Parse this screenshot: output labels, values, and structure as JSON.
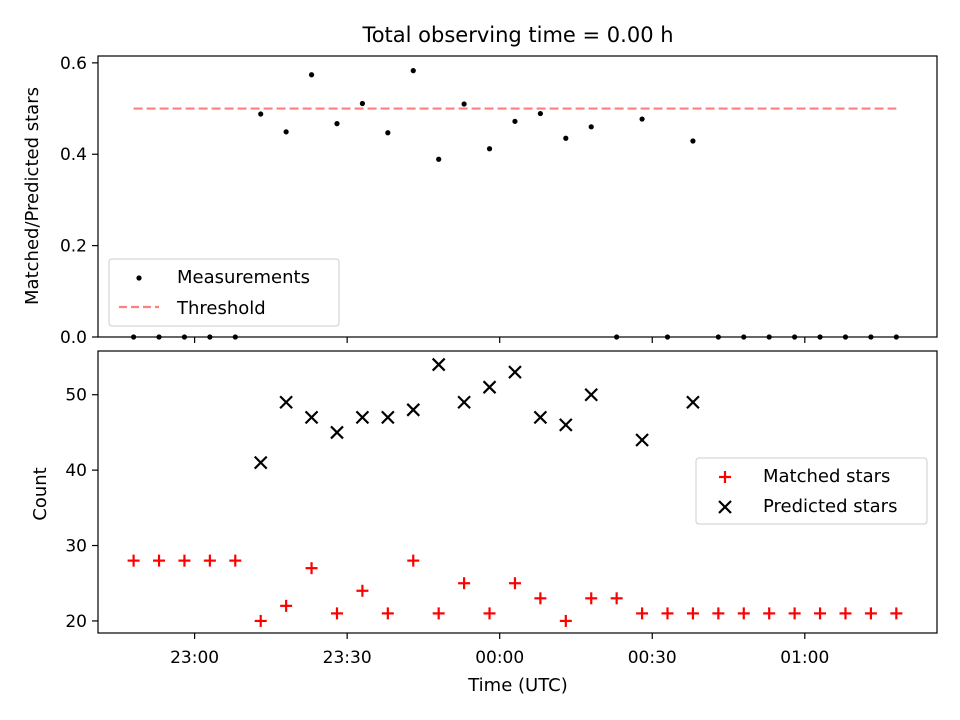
{
  "figure": {
    "title": "Total observing time = 0.00 h"
  },
  "chart_data": [
    {
      "type": "scatter",
      "ylabel": "Matched/Predicted stars",
      "ylim": [
        0,
        0.615
      ],
      "yticks": [
        "0.0",
        "0.2",
        "0.4",
        "0.6"
      ],
      "ytick_values": [
        0.0,
        0.2,
        0.4,
        0.6
      ],
      "legend_position": "lower-left",
      "series": [
        {
          "name": "Measurements",
          "marker": "dot",
          "color": "#000000",
          "x": [
            "22:48",
            "22:53",
            "22:58",
            "23:03",
            "23:08",
            "23:13",
            "23:18",
            "23:23",
            "23:28",
            "23:33",
            "23:38",
            "23:43",
            "23:48",
            "23:53",
            "23:58",
            "00:03",
            "00:08",
            "00:13",
            "00:18",
            "00:23",
            "00:28",
            "00:33",
            "00:38",
            "00:43",
            "00:48",
            "00:53",
            "00:58",
            "01:03",
            "01:08",
            "01:13",
            "01:18"
          ],
          "y": [
            0,
            0,
            0,
            0,
            0,
            0.488,
            0.449,
            0.574,
            0.467,
            0.511,
            0.447,
            0.583,
            0.389,
            0.51,
            0.412,
            0.472,
            0.489,
            0.435,
            0.46,
            0,
            0.477,
            0,
            0.429,
            0,
            0,
            0,
            0,
            0,
            0,
            0,
            0
          ]
        },
        {
          "name": "Threshold",
          "type": "dashed-line",
          "color": "#ff7f7f",
          "x": [
            "22:48",
            "01:18"
          ],
          "y": [
            0.5,
            0.5
          ]
        }
      ]
    },
    {
      "type": "scatter",
      "xlabel": "Time (UTC)",
      "ylabel": "Count",
      "ylim": [
        18.4,
        55.8
      ],
      "yticks": [
        "20",
        "30",
        "40",
        "50"
      ],
      "ytick_values": [
        20,
        30,
        40,
        50
      ],
      "xlim": [
        "22:41",
        "01:26"
      ],
      "xticks": [
        "23:00",
        "23:30",
        "00:00",
        "00:30",
        "01:00"
      ],
      "legend_position": "center-right",
      "series": [
        {
          "name": "Matched stars",
          "marker": "plus",
          "color": "#ff0000",
          "x": [
            "22:48",
            "22:53",
            "22:58",
            "23:03",
            "23:08",
            "23:13",
            "23:18",
            "23:23",
            "23:28",
            "23:33",
            "23:38",
            "23:43",
            "23:48",
            "23:53",
            "23:58",
            "00:03",
            "00:08",
            "00:13",
            "00:18",
            "00:23",
            "00:28",
            "00:33",
            "00:38",
            "00:43",
            "00:48",
            "00:53",
            "00:58",
            "01:03",
            "01:08",
            "01:13",
            "01:18"
          ],
          "y": [
            28,
            28,
            28,
            28,
            28,
            20,
            22,
            27,
            21,
            24,
            21,
            28,
            21,
            25,
            21,
            25,
            23,
            20,
            23,
            23,
            21,
            21,
            21,
            21,
            21,
            21,
            21,
            21,
            21,
            21,
            21
          ]
        },
        {
          "name": "Predicted stars",
          "marker": "x",
          "color": "#000000",
          "x": [
            "23:13",
            "23:18",
            "23:23",
            "23:28",
            "23:33",
            "23:38",
            "23:43",
            "23:48",
            "23:53",
            "23:58",
            "00:03",
            "00:08",
            "00:13",
            "00:18",
            "00:28",
            "00:38"
          ],
          "y": [
            41,
            49,
            47,
            45,
            47,
            47,
            48,
            54,
            49,
            51,
            53,
            47,
            46,
            50,
            44,
            49
          ]
        }
      ]
    }
  ]
}
